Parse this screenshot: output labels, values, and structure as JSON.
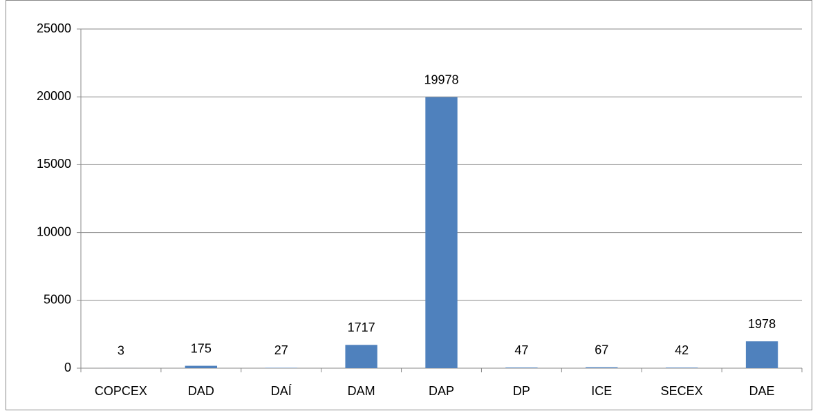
{
  "chart_data": {
    "type": "bar",
    "categories": [
      "COPCEX",
      "DAD",
      "DAÍ",
      "DAM",
      "DAP",
      "DP",
      "ICE",
      "SECEX",
      "DAE"
    ],
    "values": [
      3,
      175,
      27,
      1717,
      19978,
      47,
      67,
      42,
      1978
    ],
    "color": "#4f81bd",
    "ylim": [
      0,
      25000
    ],
    "yticks": [
      0,
      5000,
      10000,
      15000,
      20000,
      25000
    ],
    "grid": true
  }
}
